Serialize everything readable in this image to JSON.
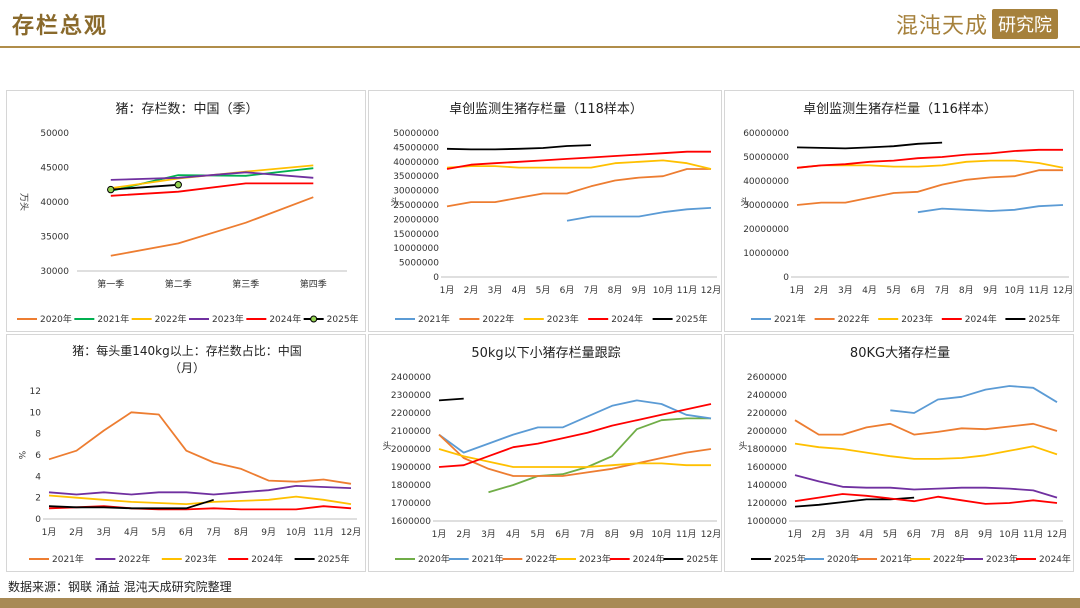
{
  "header": {
    "title": "存栏总观",
    "logo_main": "混沌天成",
    "logo_box": "研究院"
  },
  "source": "数据来源：钢联 涌益 混沌天成研究院整理",
  "chart_data": [
    {
      "type": "line",
      "title": "猪：存栏数：中国（季）",
      "ylabel": "万头",
      "ylim": [
        30000,
        50000
      ],
      "yticks": [
        30000,
        35000,
        40000,
        45000,
        50000
      ],
      "categories": [
        "第一季",
        "第二季",
        "第三季",
        "第四季"
      ],
      "legend_position": "bottom",
      "series": [
        {
          "name": "2020年",
          "color": "#ed7d31",
          "values": [
            32200,
            34000,
            37000,
            40700
          ]
        },
        {
          "name": "2021年",
          "color": "#00b050",
          "values": [
            41600,
            43900,
            43800,
            44900
          ]
        },
        {
          "name": "2022年",
          "color": "#ffc000",
          "values": [
            42000,
            43400,
            44400,
            45300
          ]
        },
        {
          "name": "2023年",
          "color": "#7030a0",
          "values": [
            43200,
            43500,
            44300,
            43500
          ]
        },
        {
          "name": "2024年",
          "color": "#ff0000",
          "values": [
            40900,
            41500,
            42700,
            42700
          ]
        },
        {
          "name": "2025年",
          "color": "#000000",
          "marker": "#92d050",
          "values": [
            41800,
            42500,
            null,
            null
          ]
        }
      ]
    },
    {
      "type": "line",
      "title": "卓创监测生猪存栏量（118样本）",
      "ylabel": "头",
      "ylim": [
        0,
        50000000
      ],
      "yticks": [
        0,
        5000000,
        10000000,
        15000000,
        20000000,
        25000000,
        30000000,
        35000000,
        40000000,
        45000000,
        50000000
      ],
      "categories": [
        "1月",
        "2月",
        "3月",
        "4月",
        "5月",
        "6月",
        "7月",
        "8月",
        "9月",
        "10月",
        "11月",
        "12月"
      ],
      "legend_position": "bottom",
      "series": [
        {
          "name": "2021年",
          "color": "#5b9bd5",
          "values": [
            null,
            null,
            null,
            null,
            null,
            19500000,
            21000000,
            21000000,
            21000000,
            22500000,
            23500000,
            24000000
          ]
        },
        {
          "name": "2022年",
          "color": "#ed7d31",
          "values": [
            24500000,
            26000000,
            26000000,
            27500000,
            29000000,
            29000000,
            31500000,
            33500000,
            34500000,
            35000000,
            37500000,
            37500000
          ]
        },
        {
          "name": "2023年",
          "color": "#ffc000",
          "values": [
            38000000,
            38500000,
            38500000,
            38000000,
            38000000,
            38000000,
            38000000,
            39500000,
            40000000,
            40500000,
            39500000,
            37500000
          ]
        },
        {
          "name": "2024年",
          "color": "#ff0000",
          "values": [
            37500000,
            39000000,
            39500000,
            40000000,
            40500000,
            41000000,
            41500000,
            42000000,
            42500000,
            43000000,
            43500000,
            43500000
          ]
        },
        {
          "name": "2025年",
          "color": "#000000",
          "values": [
            44500000,
            44300000,
            44300000,
            44500000,
            44800000,
            45500000,
            45800000,
            null,
            null,
            null,
            null,
            null
          ]
        }
      ]
    },
    {
      "type": "line",
      "title": "卓创监测生猪存栏量（116样本）",
      "ylabel": "头",
      "ylim": [
        0,
        60000000
      ],
      "yticks": [
        0,
        10000000,
        20000000,
        30000000,
        40000000,
        50000000,
        60000000
      ],
      "categories": [
        "1月",
        "2月",
        "3月",
        "4月",
        "5月",
        "6月",
        "7月",
        "8月",
        "9月",
        "10月",
        "11月",
        "12月"
      ],
      "legend_position": "bottom",
      "series": [
        {
          "name": "2021年",
          "color": "#5b9bd5",
          "values": [
            null,
            null,
            null,
            null,
            null,
            27000000,
            28500000,
            28000000,
            27500000,
            28000000,
            29500000,
            30000000
          ]
        },
        {
          "name": "2022年",
          "color": "#ed7d31",
          "values": [
            30000000,
            31000000,
            31000000,
            33000000,
            35000000,
            35500000,
            38500000,
            40500000,
            41500000,
            42000000,
            44500000,
            44500000
          ]
        },
        {
          "name": "2023年",
          "color": "#ffc000",
          "values": [
            45500000,
            46500000,
            46500000,
            46500000,
            46000000,
            46000000,
            46500000,
            48000000,
            48500000,
            48500000,
            47500000,
            45500000
          ]
        },
        {
          "name": "2024年",
          "color": "#ff0000",
          "values": [
            45500000,
            46500000,
            47000000,
            48000000,
            48500000,
            49500000,
            50000000,
            51000000,
            51500000,
            52500000,
            53000000,
            53000000
          ]
        },
        {
          "name": "2025年",
          "color": "#000000",
          "values": [
            54000000,
            53800000,
            53600000,
            54000000,
            54500000,
            55500000,
            56000000,
            null,
            null,
            null,
            null,
            null
          ]
        }
      ]
    },
    {
      "type": "line",
      "title": "猪：每头重140kg以上：存栏数占比：中国（月）",
      "ylabel": "%",
      "ylim": [
        0,
        12
      ],
      "yticks": [
        0,
        2,
        4,
        6,
        8,
        10,
        12
      ],
      "categories": [
        "1月",
        "2月",
        "3月",
        "4月",
        "5月",
        "6月",
        "7月",
        "8月",
        "9月",
        "10月",
        "11月",
        "12月"
      ],
      "legend_position": "bottom",
      "series": [
        {
          "name": "2021年",
          "color": "#ed7d31",
          "values": [
            5.6,
            6.4,
            8.3,
            10.0,
            9.8,
            6.4,
            5.3,
            4.7,
            3.6,
            3.5,
            3.7,
            3.3
          ]
        },
        {
          "name": "2022年",
          "color": "#7030a0",
          "values": [
            2.5,
            2.3,
            2.5,
            2.3,
            2.5,
            2.5,
            2.3,
            2.5,
            2.7,
            3.1,
            3.0,
            2.9
          ]
        },
        {
          "name": "2023年",
          "color": "#ffc000",
          "values": [
            2.2,
            2.0,
            1.8,
            1.6,
            1.5,
            1.4,
            1.6,
            1.7,
            1.8,
            2.1,
            1.8,
            1.4
          ]
        },
        {
          "name": "2024年",
          "color": "#ff0000",
          "values": [
            1.0,
            1.1,
            1.2,
            1.0,
            0.9,
            0.9,
            1.0,
            0.9,
            0.9,
            0.9,
            1.2,
            1.0
          ]
        },
        {
          "name": "2025年",
          "color": "#000000",
          "values": [
            1.2,
            1.1,
            1.1,
            1.0,
            1.0,
            1.0,
            1.8,
            null,
            null,
            null,
            null,
            null
          ]
        }
      ]
    },
    {
      "type": "line",
      "title": "50kg以下小猪存栏量跟踪",
      "ylabel": "头",
      "ylim": [
        1600000,
        2400000
      ],
      "yticks": [
        1600000,
        1700000,
        1800000,
        1900000,
        2000000,
        2100000,
        2200000,
        2300000,
        2400000
      ],
      "categories": [
        "1月",
        "2月",
        "3月",
        "4月",
        "5月",
        "6月",
        "7月",
        "8月",
        "9月",
        "10月",
        "11月",
        "12月"
      ],
      "legend_position": "bottom",
      "series": [
        {
          "name": "2020年",
          "color": "#70ad47",
          "values": [
            null,
            null,
            1760000,
            1800000,
            1850000,
            1860000,
            1900000,
            1960000,
            2110000,
            2160000,
            2170000,
            2170000
          ]
        },
        {
          "name": "2021年",
          "color": "#5b9bd5",
          "values": [
            2080000,
            1980000,
            2030000,
            2080000,
            2120000,
            2120000,
            2180000,
            2240000,
            2270000,
            2250000,
            2190000,
            2170000
          ]
        },
        {
          "name": "2022年",
          "color": "#ed7d31",
          "values": [
            2080000,
            1950000,
            1890000,
            1850000,
            1850000,
            1850000,
            1870000,
            1890000,
            1920000,
            1950000,
            1980000,
            2000000
          ]
        },
        {
          "name": "2023年",
          "color": "#ffc000",
          "values": [
            2000000,
            1960000,
            1930000,
            1900000,
            1900000,
            1900000,
            1900000,
            1910000,
            1920000,
            1920000,
            1910000,
            1910000
          ]
        },
        {
          "name": "2024年",
          "color": "#ff0000",
          "values": [
            1900000,
            1910000,
            1960000,
            2010000,
            2030000,
            2060000,
            2090000,
            2130000,
            2160000,
            2190000,
            2220000,
            2250000
          ]
        },
        {
          "name": "2025年",
          "color": "#000000",
          "values": [
            2270000,
            2280000,
            null,
            null,
            null,
            null,
            null,
            null,
            null,
            null,
            null,
            null
          ]
        }
      ]
    },
    {
      "type": "line",
      "title": "80KG大猪存栏量",
      "ylabel": "头",
      "ylim": [
        1000000,
        2600000
      ],
      "yticks": [
        1000000,
        1200000,
        1400000,
        1600000,
        1800000,
        2000000,
        2200000,
        2400000,
        2600000
      ],
      "categories": [
        "1月",
        "2月",
        "3月",
        "4月",
        "5月",
        "6月",
        "7月",
        "8月",
        "9月",
        "10月",
        "11月",
        "12月"
      ],
      "legend_position": "bottom",
      "series": [
        {
          "name": "2025年",
          "color": "#000000",
          "values": [
            1160000,
            1180000,
            1210000,
            1240000,
            1240000,
            1260000,
            null,
            null,
            null,
            null,
            null,
            null
          ]
        },
        {
          "name": "2020年",
          "color": "#5b9bd5",
          "values": [
            null,
            null,
            null,
            null,
            2230000,
            2200000,
            2350000,
            2380000,
            2460000,
            2500000,
            2480000,
            2320000
          ]
        },
        {
          "name": "2021年",
          "color": "#ed7d31",
          "values": [
            2120000,
            1960000,
            1960000,
            2040000,
            2080000,
            1960000,
            1990000,
            2030000,
            2020000,
            2050000,
            2080000,
            2000000
          ]
        },
        {
          "name": "2022年",
          "color": "#ffc000",
          "values": [
            1860000,
            1820000,
            1800000,
            1760000,
            1720000,
            1690000,
            1690000,
            1700000,
            1730000,
            1780000,
            1830000,
            1740000
          ]
        },
        {
          "name": "2023年",
          "color": "#7030a0",
          "values": [
            1510000,
            1440000,
            1380000,
            1370000,
            1370000,
            1350000,
            1360000,
            1370000,
            1370000,
            1360000,
            1340000,
            1260000
          ]
        },
        {
          "name": "2024年",
          "color": "#ff0000",
          "values": [
            1220000,
            1260000,
            1300000,
            1280000,
            1250000,
            1220000,
            1270000,
            1230000,
            1190000,
            1200000,
            1230000,
            1200000
          ]
        }
      ]
    }
  ]
}
